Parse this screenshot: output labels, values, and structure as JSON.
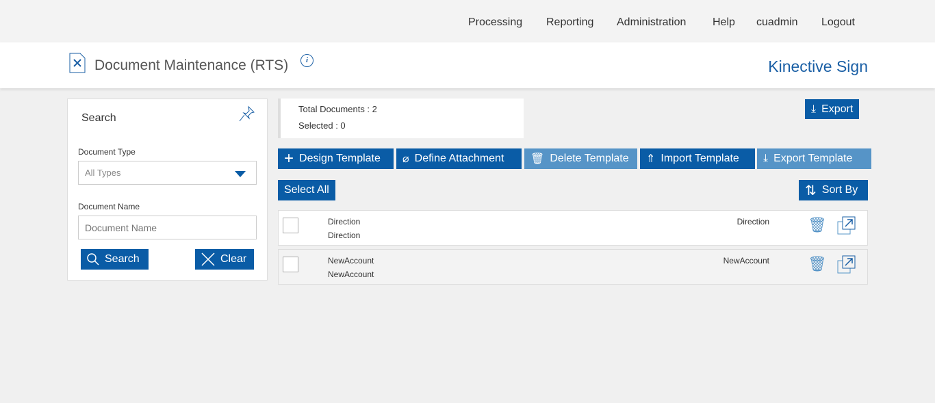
{
  "nav": [
    "Processing",
    "Reporting",
    "Administration",
    "Help",
    "cuadmin",
    "Logout"
  ],
  "header": {
    "title": "Document Maintenance (RTS)",
    "brand": "Kinective Sign",
    "info": "i"
  },
  "search": {
    "title": "Search",
    "doc_type_label": "Document Type",
    "doc_type_value": "All Types",
    "doc_name_label": "Document Name",
    "doc_name_placeholder": "Document Name",
    "search_btn": "Search",
    "clear_btn": "Clear"
  },
  "stats": {
    "total": "Total Documents : 2",
    "selected": "Selected : 0"
  },
  "toolbar": {
    "export": "Export",
    "design": "Design Template",
    "attach": "Define Attachment",
    "delete": "Delete Template",
    "import": "Import Template",
    "export_tpl": "Export Template",
    "select_all": "Select All",
    "sort": "Sort By"
  },
  "rows": [
    {
      "name": "Direction",
      "sub": "Direction",
      "right": "Direction"
    },
    {
      "name": "NewAccount",
      "sub": "NewAccount",
      "right": "NewAccount"
    }
  ],
  "colors": {
    "primary": "#0a5ca6",
    "disabled": "#5694c7",
    "brand": "#1a5fa5"
  }
}
